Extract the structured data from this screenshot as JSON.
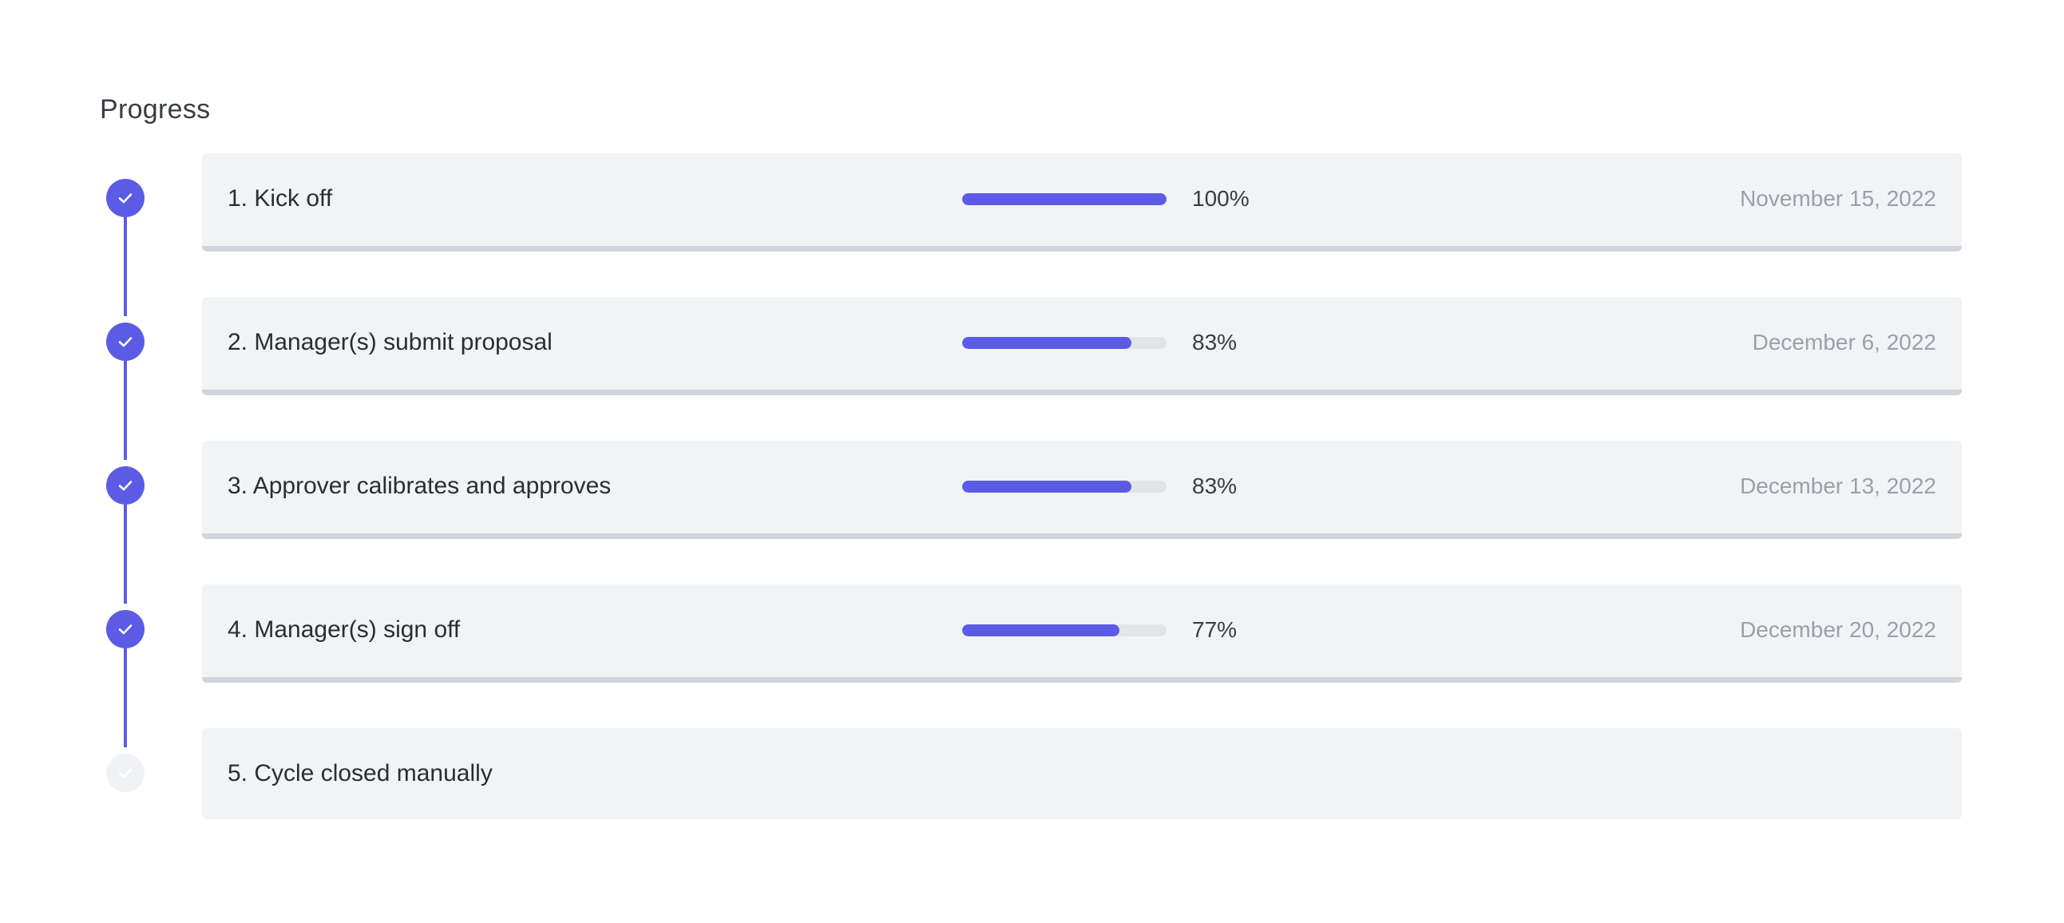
{
  "section": {
    "title": "Progress"
  },
  "colors": {
    "accent": "#5b5be6",
    "card_background": "#f2f3f5",
    "card_border_done": "#d1d4da",
    "bar_track": "#e3e4e8",
    "date_text": "#9aa0ab",
    "pending_circle": "#f1f2f4"
  },
  "steps": [
    {
      "title": "1. Kick off",
      "progress": 100,
      "percent_label": "100%",
      "date": "November 15, 2022",
      "status": "complete",
      "icon": "check-icon"
    },
    {
      "title": "2. Manager(s) submit proposal",
      "progress": 83,
      "percent_label": "83%",
      "date": "December 6, 2022",
      "status": "complete",
      "icon": "check-icon"
    },
    {
      "title": "3. Approver calibrates and approves",
      "progress": 83,
      "percent_label": "83%",
      "date": "December 13, 2022",
      "status": "complete",
      "icon": "check-icon"
    },
    {
      "title": "4. Manager(s) sign off",
      "progress": 77,
      "percent_label": "77%",
      "date": "December 20, 2022",
      "status": "complete",
      "icon": "check-icon"
    },
    {
      "title": "5. Cycle closed manually",
      "status": "pending",
      "icon": "check-icon"
    }
  ]
}
